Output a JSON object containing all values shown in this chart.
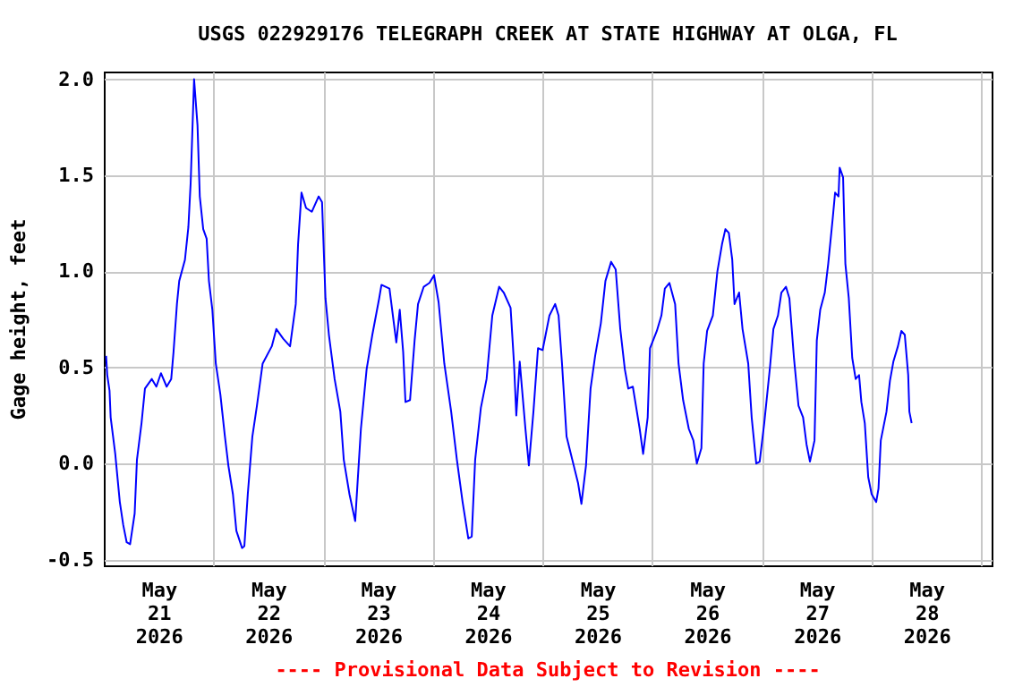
{
  "chart_data": {
    "type": "line",
    "title": "USGS 022929176 TELEGRAPH CREEK AT STATE HIGHWAY AT OLGA, FL",
    "ylabel": "Gage height, feet",
    "annotations": [
      "---- Provisional Data Subject to Revision ----"
    ],
    "xlim": [
      "2026-05-21T00:00",
      "2026-05-29T02:15"
    ],
    "xticks": [
      {
        "value": "2026-05-21T12:00",
        "label": "May\n21\n2026"
      },
      {
        "value": "2026-05-22T12:00",
        "label": "May\n22\n2026"
      },
      {
        "value": "2026-05-23T12:00",
        "label": "May\n23\n2026"
      },
      {
        "value": "2026-05-24T12:00",
        "label": "May\n24\n2026"
      },
      {
        "value": "2026-05-25T12:00",
        "label": "May\n25\n2026"
      },
      {
        "value": "2026-05-26T12:00",
        "label": "May\n26\n2026"
      },
      {
        "value": "2026-05-27T12:00",
        "label": "May\n27\n2026"
      },
      {
        "value": "2026-05-28T12:00",
        "label": "May\n28\n2026"
      },
      {
        "value": "2026-05-22T00:00",
        "label": null
      },
      {
        "value": "2026-05-23T00:00",
        "label": null
      },
      {
        "value": "2026-05-24T00:00",
        "label": null
      },
      {
        "value": "2026-05-25T00:00",
        "label": null
      },
      {
        "value": "2026-05-26T00:00",
        "label": null
      },
      {
        "value": "2026-05-27T00:00",
        "label": null
      },
      {
        "value": "2026-05-28T00:00",
        "label": null
      },
      {
        "value": "2026-05-29T00:00",
        "label": null
      }
    ],
    "ylim": [
      -0.53,
      2.04
    ],
    "yticks": [
      {
        "value": -0.5,
        "label": "-0.5"
      },
      {
        "value": 0,
        "label": "0.0"
      },
      {
        "value": 0.5,
        "label": "0.5"
      },
      {
        "value": 1,
        "label": "1.0"
      },
      {
        "value": 1.5,
        "label": "1.5"
      },
      {
        "value": 2,
        "label": "2.0"
      }
    ],
    "grid": true,
    "legend": false,
    "x": [
      "2026-05-21T00:30",
      "2026-05-21T00:45",
      "2026-05-21T01:15",
      "2026-05-21T01:30",
      "2026-05-21T02:30",
      "2026-05-21T03:30",
      "2026-05-21T04:15",
      "2026-05-21T05:00",
      "2026-05-21T05:45",
      "2026-05-21T06:45",
      "2026-05-21T07:15",
      "2026-05-21T08:15",
      "2026-05-21T09:00",
      "2026-05-21T10:30",
      "2026-05-21T11:30",
      "2026-05-21T12:30",
      "2026-05-21T13:45",
      "2026-05-21T14:45",
      "2026-05-21T15:15",
      "2026-05-21T16:00",
      "2026-05-21T16:30",
      "2026-05-21T17:45",
      "2026-05-21T18:30",
      "2026-05-21T19:00",
      "2026-05-21T19:45",
      "2026-05-21T20:30",
      "2026-05-21T21:00",
      "2026-05-21T21:45",
      "2026-05-21T22:30",
      "2026-05-21T23:00",
      "2026-05-21T23:45",
      "2026-05-22T00:30",
      "2026-05-22T01:30",
      "2026-05-22T02:30",
      "2026-05-22T03:15",
      "2026-05-22T04:15",
      "2026-05-22T05:00",
      "2026-05-22T06:15",
      "2026-05-22T06:45",
      "2026-05-22T07:30",
      "2026-05-22T08:30",
      "2026-05-22T09:30",
      "2026-05-22T10:45",
      "2026-05-22T12:45",
      "2026-05-22T13:45",
      "2026-05-22T15:15",
      "2026-05-22T16:45",
      "2026-05-22T18:00",
      "2026-05-22T18:30",
      "2026-05-22T19:15",
      "2026-05-22T20:15",
      "2026-05-22T21:30",
      "2026-05-22T23:00",
      "2026-05-22T23:45",
      "2026-05-23T00:30",
      "2026-05-23T01:15",
      "2026-05-23T02:30",
      "2026-05-23T03:45",
      "2026-05-23T04:30",
      "2026-05-23T05:45",
      "2026-05-23T07:00",
      "2026-05-23T08:15",
      "2026-05-23T09:30",
      "2026-05-23T10:45",
      "2026-05-23T12:15",
      "2026-05-23T12:45",
      "2026-05-23T14:30",
      "2026-05-23T15:15",
      "2026-05-23T16:00",
      "2026-05-23T16:45",
      "2026-05-23T17:30",
      "2026-05-23T18:00",
      "2026-05-23T19:00",
      "2026-05-23T20:00",
      "2026-05-23T20:45",
      "2026-05-23T22:00",
      "2026-05-23T23:15",
      "2026-05-24T00:15",
      "2026-05-24T01:15",
      "2026-05-24T02:30",
      "2026-05-24T04:00",
      "2026-05-24T05:15",
      "2026-05-24T06:30",
      "2026-05-24T07:45",
      "2026-05-24T08:30",
      "2026-05-24T09:15",
      "2026-05-24T10:30",
      "2026-05-24T11:45",
      "2026-05-24T13:00",
      "2026-05-24T14:30",
      "2026-05-24T15:30",
      "2026-05-24T17:00",
      "2026-05-24T17:45",
      "2026-05-24T18:15",
      "2026-05-24T19:00",
      "2026-05-24T20:15",
      "2026-05-24T21:00",
      "2026-05-24T22:00",
      "2026-05-24T23:00",
      "2026-05-25T00:00",
      "2026-05-25T01:30",
      "2026-05-25T02:45",
      "2026-05-25T03:30",
      "2026-05-25T04:15",
      "2026-05-25T05:15",
      "2026-05-25T06:30",
      "2026-05-25T07:45",
      "2026-05-25T08:30",
      "2026-05-25T09:30",
      "2026-05-25T10:30",
      "2026-05-25T11:30",
      "2026-05-25T12:45",
      "2026-05-25T13:45",
      "2026-05-25T15:00",
      "2026-05-25T16:00",
      "2026-05-25T17:00",
      "2026-05-25T18:00",
      "2026-05-25T18:45",
      "2026-05-25T19:45",
      "2026-05-25T20:30",
      "2026-05-25T21:15",
      "2026-05-25T22:00",
      "2026-05-25T23:00",
      "2026-05-25T23:30",
      "2026-05-26T01:00",
      "2026-05-26T02:00",
      "2026-05-26T02:45",
      "2026-05-26T03:45",
      "2026-05-26T05:00",
      "2026-05-26T05:45",
      "2026-05-26T06:45",
      "2026-05-26T08:00",
      "2026-05-26T09:00",
      "2026-05-26T09:45",
      "2026-05-26T10:45",
      "2026-05-26T11:15",
      "2026-05-26T12:00",
      "2026-05-26T13:15",
      "2026-05-26T14:15",
      "2026-05-26T15:15",
      "2026-05-26T16:00",
      "2026-05-26T16:45",
      "2026-05-26T17:30",
      "2026-05-26T18:00",
      "2026-05-26T19:00",
      "2026-05-26T19:45",
      "2026-05-26T21:00",
      "2026-05-26T21:45",
      "2026-05-26T22:45",
      "2026-05-26T23:30",
      "2026-05-27T00:30",
      "2026-05-27T01:45",
      "2026-05-27T02:30",
      "2026-05-27T03:30",
      "2026-05-27T04:15",
      "2026-05-27T05:15",
      "2026-05-27T06:00",
      "2026-05-27T07:00",
      "2026-05-27T08:00",
      "2026-05-27T09:00",
      "2026-05-27T09:45",
      "2026-05-27T10:30",
      "2026-05-27T11:30",
      "2026-05-27T12:00",
      "2026-05-27T12:45",
      "2026-05-27T13:45",
      "2026-05-27T14:30",
      "2026-05-27T15:30",
      "2026-05-27T16:00",
      "2026-05-27T16:45",
      "2026-05-27T17:00",
      "2026-05-27T17:45",
      "2026-05-27T18:15",
      "2026-05-27T19:00",
      "2026-05-27T19:45",
      "2026-05-27T20:30",
      "2026-05-27T21:15",
      "2026-05-27T21:45",
      "2026-05-27T22:30",
      "2026-05-27T23:15",
      "2026-05-28T00:00",
      "2026-05-28T01:00",
      "2026-05-28T01:30",
      "2026-05-28T02:00",
      "2026-05-28T03:15",
      "2026-05-28T04:00",
      "2026-05-28T04:45",
      "2026-05-28T05:45",
      "2026-05-28T06:30",
      "2026-05-28T07:15",
      "2026-05-28T08:00",
      "2026-05-28T08:15",
      "2026-05-28T08:45"
    ],
    "series": [
      {
        "color": "#0000ff",
        "values": [
          0.56,
          0.46,
          0.38,
          0.24,
          0.05,
          -0.2,
          -0.32,
          -0.41,
          -0.42,
          -0.26,
          0.02,
          0.21,
          0.39,
          0.44,
          0.4,
          0.47,
          0.4,
          0.44,
          0.58,
          0.83,
          0.95,
          1.06,
          1.23,
          1.46,
          2.0,
          1.76,
          1.39,
          1.22,
          1.17,
          0.95,
          0.8,
          0.52,
          0.36,
          0.14,
          -0.01,
          -0.16,
          -0.35,
          -0.44,
          -0.43,
          -0.16,
          0.14,
          0.3,
          0.52,
          0.61,
          0.7,
          0.65,
          0.61,
          0.83,
          1.14,
          1.41,
          1.33,
          1.31,
          1.39,
          1.36,
          0.86,
          0.67,
          0.44,
          0.27,
          0.02,
          -0.16,
          -0.3,
          0.18,
          0.49,
          0.67,
          0.86,
          0.93,
          0.91,
          0.77,
          0.63,
          0.8,
          0.58,
          0.32,
          0.33,
          0.64,
          0.83,
          0.92,
          0.94,
          0.98,
          0.84,
          0.52,
          0.27,
          0.02,
          -0.2,
          -0.39,
          -0.38,
          0.02,
          0.29,
          0.44,
          0.77,
          0.92,
          0.89,
          0.81,
          0.52,
          0.25,
          0.53,
          0.18,
          -0.01,
          0.27,
          0.6,
          0.59,
          0.77,
          0.83,
          0.77,
          0.52,
          0.14,
          0.02,
          -0.1,
          -0.21,
          -0.01,
          0.39,
          0.56,
          0.73,
          0.95,
          1.05,
          1.01,
          0.7,
          0.49,
          0.39,
          0.4,
          0.29,
          0.18,
          0.05,
          0.24,
          0.6,
          0.69,
          0.77,
          0.91,
          0.94,
          0.83,
          0.52,
          0.33,
          0.18,
          0.12,
          0.0,
          0.08,
          0.52,
          0.69,
          0.77,
          1.0,
          1.14,
          1.22,
          1.2,
          1.06,
          0.83,
          0.89,
          0.7,
          0.52,
          0.24,
          0.0,
          0.01,
          0.21,
          0.5,
          0.7,
          0.77,
          0.89,
          0.92,
          0.86,
          0.55,
          0.3,
          0.24,
          0.1,
          0.01,
          0.12,
          0.64,
          0.8,
          0.89,
          1.04,
          1.28,
          1.41,
          1.39,
          1.54,
          1.49,
          1.04,
          0.86,
          0.55,
          0.44,
          0.46,
          0.32,
          0.21,
          -0.07,
          -0.16,
          -0.2,
          -0.13,
          0.12,
          0.27,
          0.43,
          0.53,
          0.61,
          0.69,
          0.67,
          0.46,
          0.27,
          0.21
        ]
      }
    ]
  }
}
